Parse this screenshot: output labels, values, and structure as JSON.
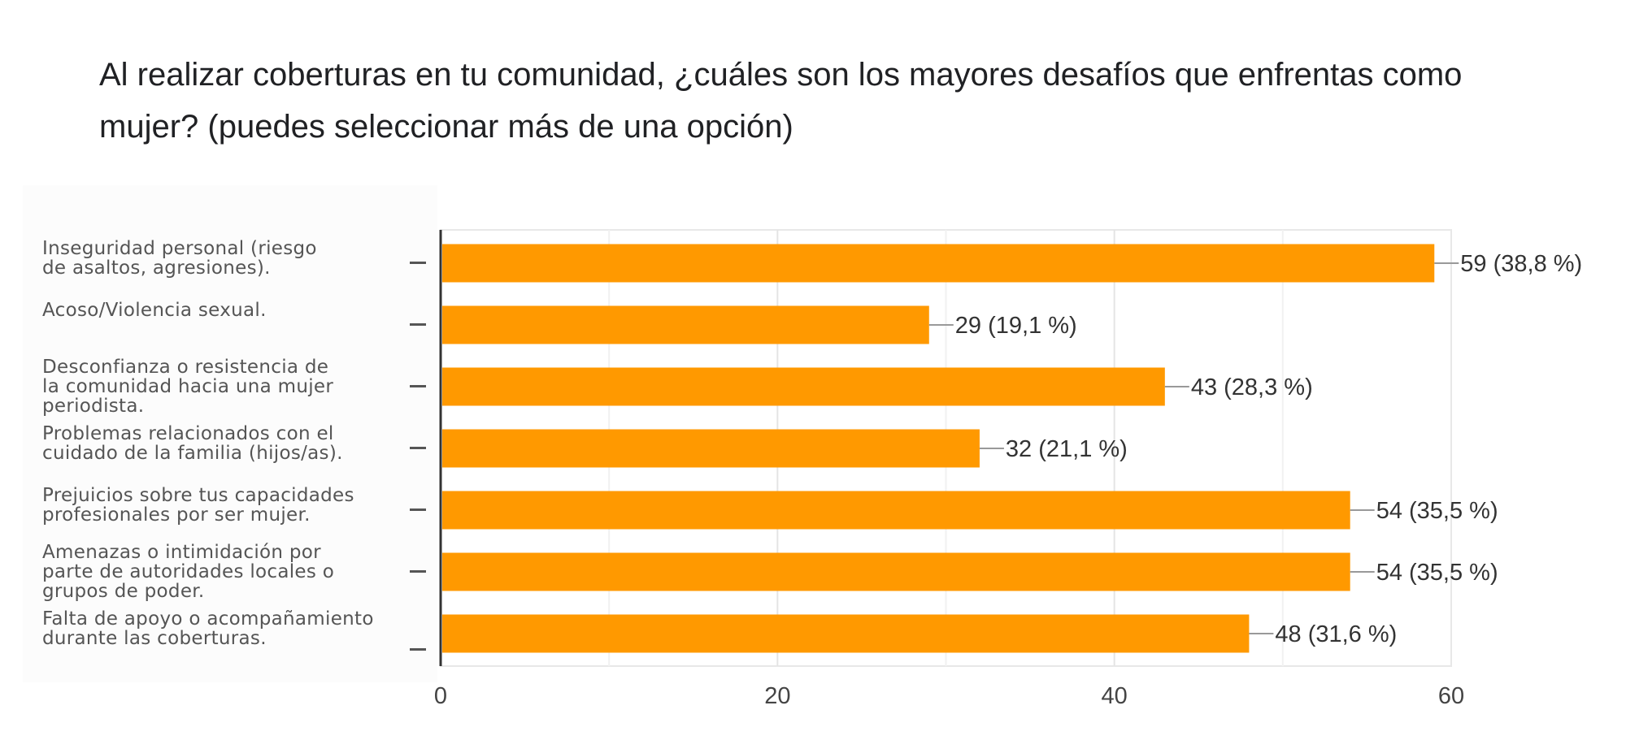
{
  "question": {
    "title": "Al realizar coberturas en tu comunidad, ¿cuáles son los mayores desafíos que enfrentas como mujer? (puedes seleccionar más de una opción)"
  },
  "colors": {
    "bar": "#ff9900",
    "grid": "#e8e8e8",
    "axis": "#333333",
    "label_text": "#333333",
    "leader": "#999999"
  },
  "chart_data": {
    "type": "bar",
    "orientation": "horizontal",
    "title": "Al realizar coberturas en tu comunidad, ¿cuáles son los mayores desafíos que enfrentas como mujer? (puedes seleccionar más de una opción)",
    "categories": [
      "Inseguridad personal (riesgo de asaltos, agresiones).",
      "Acoso/Violencia sexual.",
      "Desconfianza o resistencia de la comunidad hacia una mujer periodista.",
      "Problemas relacionados con el cuidado de la familia (hijos/as).",
      "Prejuicios sobre tus capacidades profesionales por ser mujer.",
      "Amenazas o intimidación por parte de autoridades locales o grupos de poder.",
      "Falta de apoyo o acompañamiento durante las coberturas."
    ],
    "category_lines": [
      [
        "Inseguridad personal (riesgo",
        "de asaltos, agresiones)."
      ],
      [
        "Acoso/Violencia sexual."
      ],
      [
        "Desconfianza o resistencia de",
        "la comunidad hacia una mujer",
        "periodista."
      ],
      [
        "Problemas relacionados con el",
        "cuidado de la familia (hijos/as)."
      ],
      [
        "Prejuicios sobre tus capacidades",
        "profesionales por ser mujer."
      ],
      [
        "Amenazas o intimidación por",
        "parte de autoridades locales o",
        "grupos de poder."
      ],
      [
        "Falta de apoyo o acompañamiento",
        "durante las coberturas."
      ]
    ],
    "values": [
      59,
      29,
      43,
      32,
      54,
      54,
      48
    ],
    "percentages": [
      "38,8 %",
      "19,1 %",
      "28,3 %",
      "21,1 %",
      "35,5 %",
      "35,5 %",
      "31,6 %"
    ],
    "data_labels": [
      "59 (38,8 %)",
      "29 (19,1 %)",
      "43 (28,3 %)",
      "32 (21,1 %)",
      "54 (35,5 %)",
      "54 (35,5 %)",
      "48 (31,6 %)"
    ],
    "xlabel": "",
    "ylabel": "",
    "xlim": [
      0,
      60
    ],
    "xticks": [
      0,
      20,
      40,
      60
    ],
    "xtick_labels": [
      "0",
      "20",
      "40",
      "60"
    ],
    "minor_grid_step": 10,
    "grid": true,
    "legend": "none"
  }
}
